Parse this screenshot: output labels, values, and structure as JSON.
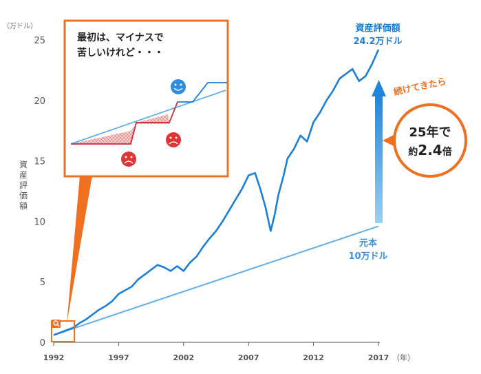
{
  "chart_data": {
    "type": "line",
    "y_unit_label": "（万ドル）",
    "x_unit_label": "（年）",
    "ylabel": "資産評価額",
    "ylim": [
      0,
      25
    ],
    "yticks": [
      0,
      5,
      10,
      15,
      20,
      25
    ],
    "xlim": [
      1992,
      2017
    ],
    "xticks": [
      "1992",
      "1997",
      "2002",
      "2007",
      "2012",
      "2017"
    ],
    "grid": false,
    "series": [
      {
        "name": "資産評価額",
        "color": "#1a7fd6",
        "x": [
          1992.0,
          1992.5,
          1993.0,
          1993.5,
          1994.0,
          1994.5,
          1995.0,
          1995.5,
          1996.0,
          1996.5,
          1997.0,
          1997.5,
          1998.0,
          1998.5,
          1999.0,
          1999.5,
          2000.0,
          2000.5,
          2001.0,
          2001.5,
          2002.0,
          2002.5,
          2003.0,
          2003.5,
          2004.0,
          2004.5,
          2005.0,
          2005.5,
          2006.0,
          2006.5,
          2007.0,
          2007.5,
          2007.9,
          2008.3,
          2008.7,
          2009.0,
          2009.3,
          2009.7,
          2010.0,
          2010.5,
          2011.0,
          2011.5,
          2012.0,
          2012.5,
          2013.0,
          2013.5,
          2014.0,
          2014.5,
          2015.0,
          2015.5,
          2016.0,
          2016.5,
          2017.0
        ],
        "values": [
          0.6,
          0.8,
          1.0,
          1.2,
          1.6,
          1.9,
          2.3,
          2.7,
          3.0,
          3.4,
          4.0,
          4.3,
          4.6,
          5.2,
          5.6,
          6.0,
          6.4,
          6.2,
          5.9,
          6.3,
          5.9,
          6.6,
          7.1,
          7.9,
          8.6,
          9.2,
          10.0,
          10.9,
          11.8,
          12.7,
          13.8,
          14.0,
          12.7,
          11.2,
          9.2,
          10.5,
          12.2,
          13.8,
          15.2,
          16.0,
          17.1,
          16.6,
          18.2,
          19.0,
          20.0,
          20.8,
          21.8,
          22.2,
          22.6,
          21.6,
          22.0,
          23.0,
          24.2
        ]
      },
      {
        "name": "元本",
        "color": "#62aee6",
        "x": [
          1992,
          2017
        ],
        "values": [
          0.6,
          9.6
        ]
      }
    ],
    "annotations": {
      "final_value": [
        "資産評価額",
        "24.2万ドル"
      ],
      "principal": [
        "元本",
        "10万ドル"
      ],
      "callout": [
        "最初は、マイナスで",
        "苦しいけれど・・・"
      ],
      "badge_caption": "続けてきたら",
      "badge_line1": "25年で",
      "badge_line2_prefix": "約",
      "badge_line2_value": "2.4",
      "badge_line2_suffix": "倍"
    }
  }
}
